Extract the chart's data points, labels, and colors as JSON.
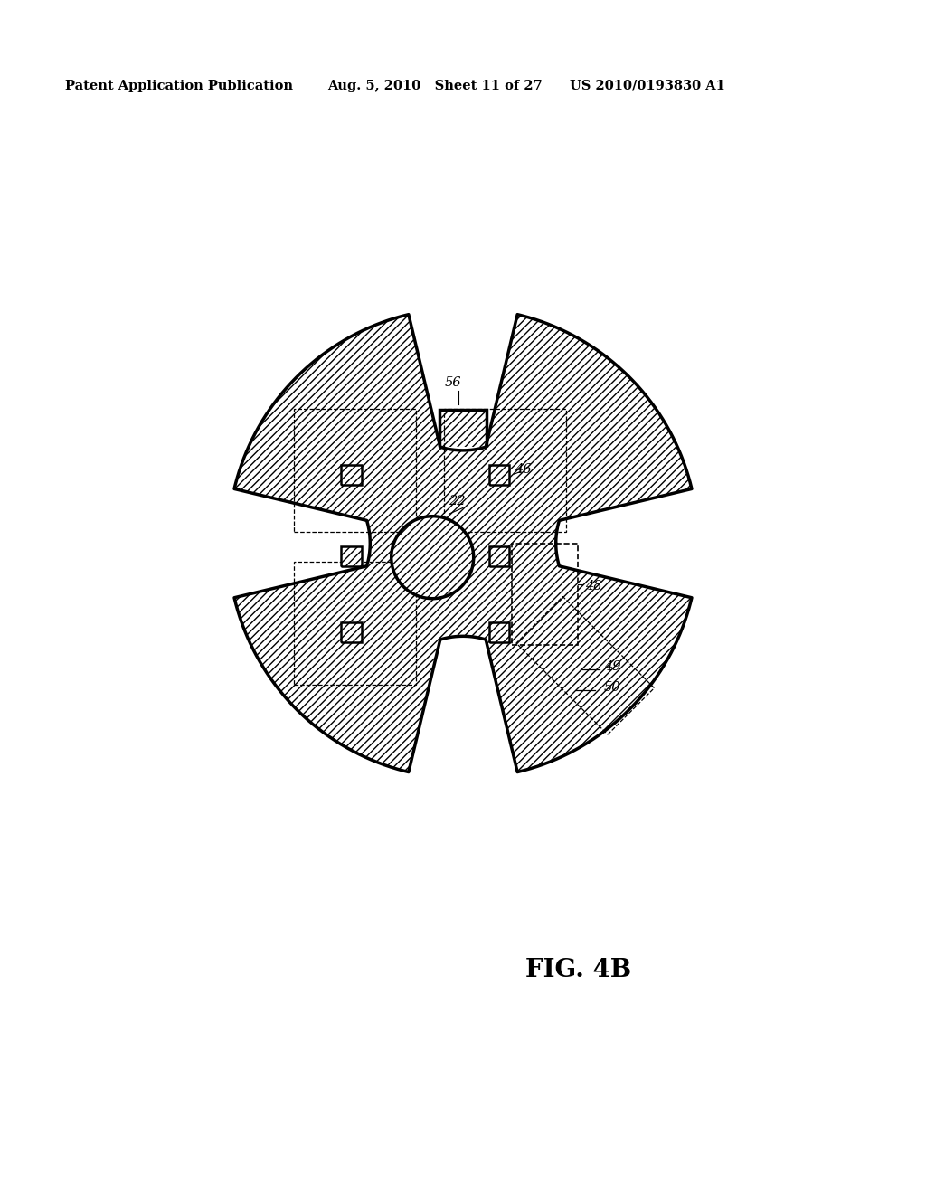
{
  "title": "FIG. 4B",
  "patent_header_left": "Patent Application Publication",
  "patent_header_mid": "Aug. 5, 2010   Sheet 11 of 27",
  "patent_header_right": "US 2010/0193830 A1",
  "background_color": "#ffffff",
  "line_color": "#000000",
  "label_56": "56",
  "label_22": "22",
  "label_46": "46",
  "label_48": "48",
  "label_49": "49",
  "label_50": "50"
}
